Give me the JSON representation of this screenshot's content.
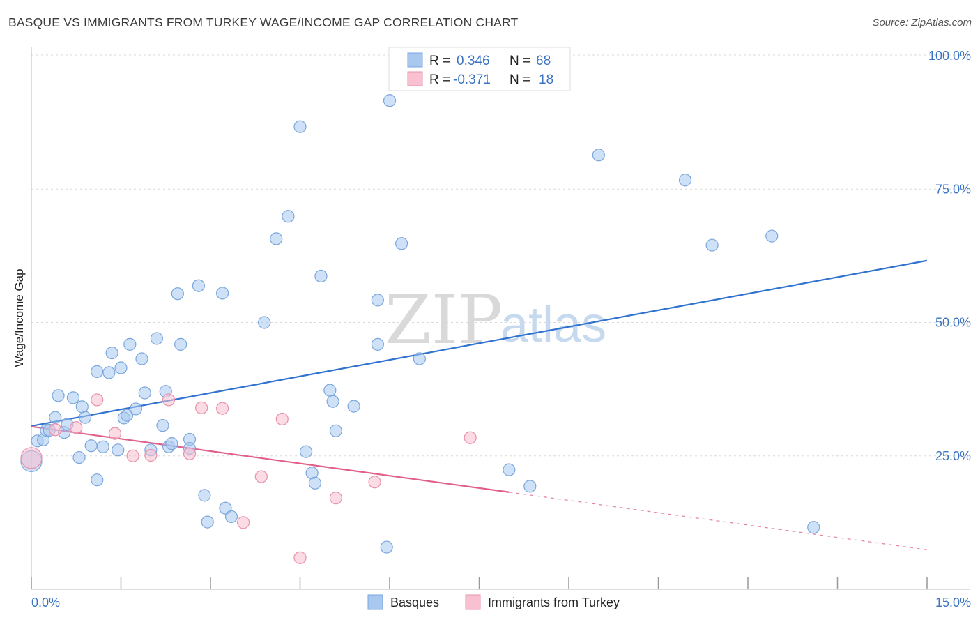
{
  "title": "BASQUE VS IMMIGRANTS FROM TURKEY WAGE/INCOME GAP CORRELATION CHART",
  "source": "Source: ZipAtlas.com",
  "watermark": {
    "zip": "ZIP",
    "atlas": "atlas"
  },
  "legend_top": [
    {
      "name": "Basques",
      "r_label": "R =",
      "r_value": "0.346",
      "n_label": "N =",
      "n_value": "68",
      "color": "#a8c8f0",
      "stroke": "#7aa6dc"
    },
    {
      "name": "Immigrants from Turkey",
      "r_label": "R =",
      "r_value": "-0.371",
      "n_label": "N =",
      "n_value": "18",
      "color": "#f8c0d0",
      "stroke": "#e890a8"
    }
  ],
  "chart_data": {
    "type": "scatter",
    "title": "BASQUE VS IMMIGRANTS FROM TURKEY WAGE/INCOME GAP CORRELATION CHART",
    "xlabel": "",
    "ylabel": "Wage/Income Gap",
    "xlim": [
      0,
      15
    ],
    "ylim": [
      0,
      105
    ],
    "x_tick_labels": [
      {
        "value": 0,
        "label": "0.0%"
      },
      {
        "value": 15,
        "label": "15.0%"
      }
    ],
    "y_ticks": [
      {
        "value": 25,
        "label": "25.0%"
      },
      {
        "value": 50,
        "label": "50.0%"
      },
      {
        "value": 75,
        "label": "75.0%"
      },
      {
        "value": 100,
        "label": "100.0%"
      }
    ],
    "series": [
      {
        "name": "Basques",
        "color": "#a8c8f0",
        "stroke": "#7aa6dc",
        "trend": {
          "x0": 0,
          "y0": 30.6,
          "x1": 15,
          "y1": 61.6,
          "color": "#2f72d0"
        },
        "points": [
          [
            0.1,
            27.8
          ],
          [
            0.2,
            28.0
          ],
          [
            0.25,
            29.8
          ],
          [
            0.3,
            29.8
          ],
          [
            0.4,
            32.2
          ],
          [
            0.45,
            36.3
          ],
          [
            0.55,
            29.4
          ],
          [
            0.6,
            30.9
          ],
          [
            0.7,
            35.9
          ],
          [
            0.8,
            24.7
          ],
          [
            0.85,
            34.2
          ],
          [
            0.9,
            32.2
          ],
          [
            1.0,
            26.9
          ],
          [
            1.1,
            20.5
          ],
          [
            1.1,
            40.8
          ],
          [
            1.2,
            26.7
          ],
          [
            1.3,
            40.6
          ],
          [
            1.35,
            44.3
          ],
          [
            1.45,
            26.1
          ],
          [
            1.5,
            41.5
          ],
          [
            1.55,
            32.1
          ],
          [
            1.6,
            32.6
          ],
          [
            1.65,
            45.9
          ],
          [
            1.75,
            33.8
          ],
          [
            1.85,
            43.2
          ],
          [
            1.9,
            36.8
          ],
          [
            2.0,
            26.1
          ],
          [
            2.1,
            47.0
          ],
          [
            2.2,
            30.7
          ],
          [
            2.25,
            37.1
          ],
          [
            2.3,
            26.7
          ],
          [
            2.35,
            27.3
          ],
          [
            2.45,
            55.4
          ],
          [
            2.5,
            45.9
          ],
          [
            2.65,
            28.1
          ],
          [
            2.65,
            26.4
          ],
          [
            2.8,
            56.9
          ],
          [
            2.9,
            17.6
          ],
          [
            2.95,
            12.6
          ],
          [
            3.2,
            55.5
          ],
          [
            3.25,
            15.2
          ],
          [
            3.35,
            13.6
          ],
          [
            3.9,
            50.0
          ],
          [
            4.1,
            65.7
          ],
          [
            4.3,
            69.9
          ],
          [
            4.5,
            86.7
          ],
          [
            4.6,
            25.8
          ],
          [
            4.7,
            21.8
          ],
          [
            4.75,
            19.9
          ],
          [
            4.85,
            58.7
          ],
          [
            5.0,
            37.3
          ],
          [
            5.05,
            35.2
          ],
          [
            5.1,
            29.7
          ],
          [
            5.4,
            34.3
          ],
          [
            5.8,
            54.2
          ],
          [
            5.8,
            45.9
          ],
          [
            5.95,
            7.9
          ],
          [
            6.0,
            91.6
          ],
          [
            6.2,
            64.8
          ],
          [
            6.5,
            43.2
          ],
          [
            8.0,
            22.4
          ],
          [
            8.35,
            19.3
          ],
          [
            9.5,
            81.4
          ],
          [
            10.95,
            76.7
          ],
          [
            11.4,
            64.5
          ],
          [
            12.4,
            66.2
          ],
          [
            13.1,
            11.6
          ],
          [
            0.0,
            24.0
          ]
        ]
      },
      {
        "name": "Immigrants from Turkey",
        "color": "#f8c0d0",
        "stroke": "#e890a8",
        "trend": {
          "x0": 0,
          "y0": 30.5,
          "x1": 8.0,
          "y1": 18.2,
          "x_dash_end": 15,
          "y_dash_end": 7.4,
          "color": "#e0608a"
        },
        "points": [
          [
            0.0,
            24.6
          ],
          [
            0.4,
            29.9
          ],
          [
            0.75,
            30.3
          ],
          [
            1.1,
            35.5
          ],
          [
            1.4,
            29.2
          ],
          [
            1.7,
            25.0
          ],
          [
            2.0,
            25.1
          ],
          [
            2.3,
            35.5
          ],
          [
            2.65,
            25.4
          ],
          [
            2.85,
            34.0
          ],
          [
            3.2,
            33.9
          ],
          [
            3.55,
            12.5
          ],
          [
            3.85,
            21.1
          ],
          [
            4.2,
            31.9
          ],
          [
            4.5,
            5.9
          ],
          [
            5.1,
            17.1
          ],
          [
            5.75,
            20.1
          ],
          [
            7.35,
            28.4
          ]
        ]
      }
    ]
  }
}
